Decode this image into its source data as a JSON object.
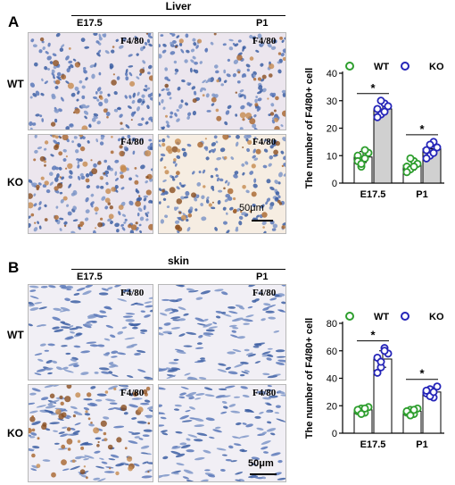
{
  "panel_a": {
    "letter": "A",
    "title": "Liver",
    "columns": [
      "E17.5",
      "P1"
    ],
    "rows": [
      "WT",
      "KO"
    ],
    "stain_label": "F4/80",
    "scale_bar": "50μm"
  },
  "panel_b": {
    "letter": "B",
    "title": "skin",
    "columns": [
      "E17.5",
      "P1"
    ],
    "rows": [
      "WT",
      "KO"
    ],
    "stain_label": "F4/80",
    "scale_bar": "50μm"
  },
  "colors": {
    "wt": "#2e9e2e",
    "ko": "#2424b8",
    "ko_bar_fill_a": "#d0d0d0",
    "ko_bar_fill_b": "#ffffff",
    "tissue_bg": "#eeeaf0",
    "nuclei": "#3d5fa3",
    "stain_brown": "#8a4d1f"
  },
  "chart_data": [
    {
      "type": "bar",
      "panel": "A",
      "categories": [
        "E17.5",
        "P1"
      ],
      "ylabel": "The number of F4/80+ cell",
      "ylim": [
        0,
        40
      ],
      "yticks": [
        0,
        10,
        20,
        30,
        40
      ],
      "legend": [
        "WT",
        "KO"
      ],
      "legend_position": "top",
      "significance": [
        "*",
        "*"
      ],
      "series": [
        {
          "name": "WT",
          "values": [
            9.5,
            6.5
          ],
          "points": [
            [
              10,
              6,
              9,
              11,
              8,
              7,
              12
            ],
            [
              6,
              5,
              8,
              7,
              4,
              9,
              6
            ]
          ],
          "errors": [
            2,
            1.8
          ]
        },
        {
          "name": "KO",
          "values": [
            27,
            12.5
          ],
          "points": [
            [
              27,
              25,
              29,
              28,
              24,
              30,
              26
            ],
            [
              12,
              10,
              15,
              13,
              9,
              14,
              11
            ]
          ],
          "errors": [
            2,
            2
          ]
        }
      ]
    },
    {
      "type": "bar",
      "panel": "B",
      "categories": [
        "E17.5",
        "P1"
      ],
      "ylabel": "The number of F4/80+ cell",
      "ylim": [
        0,
        80
      ],
      "yticks": [
        0,
        20,
        40,
        60,
        80
      ],
      "legend": [
        "WT",
        "KO"
      ],
      "legend_position": "top",
      "significance": [
        "*",
        "*"
      ],
      "series": [
        {
          "name": "WT",
          "values": [
            17,
            16
          ],
          "points": [
            [
              16,
              18,
              15,
              19,
              17,
              14,
              18
            ],
            [
              15,
              17,
              14,
              18,
              16,
              13,
              17
            ]
          ],
          "errors": [
            2,
            2
          ]
        },
        {
          "name": "KO",
          "values": [
            54,
            30
          ],
          "points": [
            [
              55,
              48,
              62,
              58,
              44,
              52,
              60
            ],
            [
              29,
              32,
              26,
              34,
              31,
              27,
              30
            ]
          ],
          "errors": [
            6,
            3
          ]
        }
      ]
    }
  ]
}
